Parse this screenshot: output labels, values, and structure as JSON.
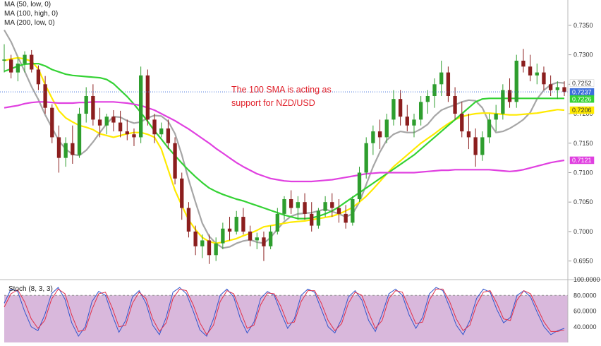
{
  "chart_data": [
    {
      "type": "candlestick",
      "series": [
        {
          "name": "MA (50, low, 0)",
          "color": "#a6a6a6",
          "values": [
            0.7342,
            0.7322,
            0.7296,
            0.7272,
            0.7246,
            0.7224,
            0.7198,
            0.7176,
            0.7154,
            0.714,
            0.7131,
            0.7129,
            0.7138,
            0.7152,
            0.7168,
            0.7183,
            0.7195,
            0.7194,
            0.7188,
            0.7184,
            0.7186,
            0.7193,
            0.7197,
            0.7196,
            0.7187,
            0.7166,
            0.713,
            0.7088,
            0.705,
            0.7014,
            0.6992,
            0.698,
            0.6972,
            0.6974,
            0.698,
            0.6984,
            0.6986,
            0.6982,
            0.698,
            0.699,
            0.7004,
            0.7017,
            0.7026,
            0.703,
            0.7031,
            0.7032,
            0.7035,
            0.7038,
            0.7034,
            0.703,
            0.7025,
            0.703,
            0.705,
            0.708,
            0.711,
            0.7135,
            0.7155,
            0.7165,
            0.717,
            0.7168,
            0.7168,
            0.7174,
            0.7182,
            0.7196,
            0.7206,
            0.7211,
            0.7215,
            0.722,
            0.7223,
            0.7222,
            0.721,
            0.7185,
            0.7168,
            0.717,
            0.7175,
            0.7182,
            0.719,
            0.7202,
            0.7225,
            0.724,
            0.7249,
            0.7253,
            0.7252
          ]
        },
        {
          "name": "MA (100, high, 0)",
          "color": "#ffea00",
          "values": [
            0.729,
            0.7293,
            0.7295,
            0.7293,
            0.7289,
            0.7276,
            0.7249,
            0.7226,
            0.7205,
            0.7193,
            0.7186,
            0.718,
            0.7177,
            0.7173,
            0.7166,
            0.7163,
            0.716,
            0.7163,
            0.7166,
            0.7168,
            0.7168,
            0.7165,
            0.716,
            0.714,
            0.7105,
            0.707,
            0.7044,
            0.702,
            0.7003,
            0.699,
            0.6983,
            0.698,
            0.6982,
            0.6985,
            0.6988,
            0.6993,
            0.6997,
            0.7002,
            0.7008,
            0.701,
            0.7012,
            0.7014,
            0.7016,
            0.7017,
            0.7018,
            0.702,
            0.7022,
            0.7024,
            0.7026,
            0.703,
            0.7035,
            0.7041,
            0.705,
            0.706,
            0.7072,
            0.7085,
            0.7098,
            0.711,
            0.712,
            0.713,
            0.714,
            0.715,
            0.7158,
            0.7166,
            0.7175,
            0.7183,
            0.719,
            0.7195,
            0.7198,
            0.72,
            0.7201,
            0.7201,
            0.72,
            0.7199,
            0.7198,
            0.7198,
            0.7199,
            0.72,
            0.7201,
            0.7203,
            0.7205,
            0.7207,
            0.7206
          ]
        },
        {
          "name": "MA (200, low, 0)",
          "color": "#34d234",
          "values": [
            0.7272,
            0.7276,
            0.7281,
            0.7284,
            0.7285,
            0.7285,
            0.7281,
            0.7275,
            0.7271,
            0.7267,
            0.7265,
            0.7264,
            0.7263,
            0.7262,
            0.7261,
            0.7258,
            0.7251,
            0.724,
            0.7229,
            0.7216,
            0.7202,
            0.7187,
            0.7171,
            0.7157,
            0.7142,
            0.7129,
            0.7116,
            0.7104,
            0.7093,
            0.7083,
            0.7074,
            0.7068,
            0.7063,
            0.7059,
            0.7055,
            0.7052,
            0.7048,
            0.7044,
            0.704,
            0.7036,
            0.7032,
            0.7028,
            0.7025,
            0.7022,
            0.7022,
            0.7023,
            0.7026,
            0.703,
            0.7035,
            0.7042,
            0.705,
            0.7058,
            0.7066,
            0.7074,
            0.7082,
            0.709,
            0.7098,
            0.7106,
            0.7114,
            0.7122,
            0.713,
            0.714,
            0.715,
            0.716,
            0.717,
            0.718,
            0.719,
            0.72,
            0.721,
            0.722,
            0.7225,
            0.7226,
            0.7226,
            0.7226,
            0.7226,
            0.7226,
            0.7226,
            0.7226,
            0.7226,
            0.7226,
            0.7226,
            0.7226,
            0.7226
          ]
        },
        {
          "name": "",
          "color": "#e040e0",
          "values": [
            0.721,
            0.7212,
            0.7214,
            0.7217,
            0.7219,
            0.722,
            0.722,
            0.7219,
            0.7218,
            0.7218,
            0.7218,
            0.7219,
            0.7219,
            0.722,
            0.722,
            0.722,
            0.722,
            0.7219,
            0.7218,
            0.7216,
            0.7214,
            0.721,
            0.7206,
            0.72,
            0.7194,
            0.7188,
            0.7181,
            0.7174,
            0.7166,
            0.7158,
            0.715,
            0.7141,
            0.7133,
            0.7125,
            0.7117,
            0.711,
            0.7104,
            0.7098,
            0.7094,
            0.709,
            0.7088,
            0.7086,
            0.7085,
            0.7085,
            0.7085,
            0.7085,
            0.7086,
            0.7087,
            0.7088,
            0.709,
            0.7092,
            0.7094,
            0.7096,
            0.7098,
            0.7099,
            0.71,
            0.71,
            0.71,
            0.71,
            0.71,
            0.71,
            0.7101,
            0.7102,
            0.7103,
            0.7104,
            0.7104,
            0.7105,
            0.7105,
            0.7105,
            0.7105,
            0.7105,
            0.7105,
            0.7104,
            0.7103,
            0.7102,
            0.7103,
            0.7105,
            0.7108,
            0.7111,
            0.7114,
            0.7117,
            0.7119,
            0.7121
          ]
        }
      ],
      "ohlc": [
        [
          0.729,
          0.7318,
          0.727,
          0.7292
        ],
        [
          0.7292,
          0.73,
          0.726,
          0.727
        ],
        [
          0.727,
          0.7296,
          0.7255,
          0.7285
        ],
        [
          0.7285,
          0.7306,
          0.727,
          0.73
        ],
        [
          0.73,
          0.7308,
          0.727,
          0.7275
        ],
        [
          0.7275,
          0.7282,
          0.724,
          0.725
        ],
        [
          0.725,
          0.7264,
          0.72,
          0.721
        ],
        [
          0.721,
          0.7216,
          0.715,
          0.716
        ],
        [
          0.716,
          0.718,
          0.71,
          0.7125
        ],
        [
          0.7125,
          0.716,
          0.711,
          0.715
        ],
        [
          0.715,
          0.718,
          0.7115,
          0.713
        ],
        [
          0.713,
          0.721,
          0.7125,
          0.72
        ],
        [
          0.72,
          0.7245,
          0.7185,
          0.723
        ],
        [
          0.723,
          0.725,
          0.718,
          0.719
        ],
        [
          0.719,
          0.721,
          0.716,
          0.718
        ],
        [
          0.718,
          0.72,
          0.7165,
          0.7195
        ],
        [
          0.7195,
          0.7206,
          0.717,
          0.7185
        ],
        [
          0.7185,
          0.7205,
          0.716,
          0.717
        ],
        [
          0.717,
          0.719,
          0.7155,
          0.7165
        ],
        [
          0.7165,
          0.7175,
          0.7145,
          0.716
        ],
        [
          0.716,
          0.728,
          0.715,
          0.7265
        ],
        [
          0.7265,
          0.7275,
          0.718,
          0.719
        ],
        [
          0.719,
          0.72,
          0.715,
          0.7165
        ],
        [
          0.7165,
          0.7185,
          0.716,
          0.7175
        ],
        [
          0.7175,
          0.719,
          0.714,
          0.715
        ],
        [
          0.715,
          0.716,
          0.708,
          0.709
        ],
        [
          0.709,
          0.71,
          0.702,
          0.704
        ],
        [
          0.704,
          0.705,
          0.699,
          0.7
        ],
        [
          0.7,
          0.701,
          0.696,
          0.6975
        ],
        [
          0.6975,
          0.6995,
          0.6955,
          0.6985
        ],
        [
          0.6985,
          0.6995,
          0.6945,
          0.696
        ],
        [
          0.696,
          0.699,
          0.695,
          0.698
        ],
        [
          0.698,
          0.7015,
          0.697,
          0.7005
        ],
        [
          0.7005,
          0.7025,
          0.6985,
          0.7
        ],
        [
          0.7,
          0.7035,
          0.6995,
          0.7025
        ],
        [
          0.7025,
          0.704,
          0.6995,
          0.7
        ],
        [
          0.7,
          0.701,
          0.6975,
          0.6985
        ],
        [
          0.6985,
          0.6998,
          0.697,
          0.699
        ],
        [
          0.699,
          0.7,
          0.695,
          0.6975
        ],
        [
          0.6975,
          0.701,
          0.697,
          0.7
        ],
        [
          0.7,
          0.704,
          0.6995,
          0.703
        ],
        [
          0.703,
          0.706,
          0.702,
          0.7055
        ],
        [
          0.7055,
          0.707,
          0.703,
          0.704
        ],
        [
          0.704,
          0.706,
          0.702,
          0.705
        ],
        [
          0.705,
          0.7065,
          0.702,
          0.703
        ],
        [
          0.703,
          0.705,
          0.7,
          0.701
        ],
        [
          0.701,
          0.704,
          0.7005,
          0.7035
        ],
        [
          0.7035,
          0.706,
          0.7025,
          0.705
        ],
        [
          0.705,
          0.7065,
          0.7025,
          0.704
        ],
        [
          0.704,
          0.7055,
          0.7015,
          0.703
        ],
        [
          0.703,
          0.7045,
          0.7005,
          0.7015
        ],
        [
          0.7015,
          0.706,
          0.701,
          0.7055
        ],
        [
          0.7055,
          0.711,
          0.705,
          0.71
        ],
        [
          0.71,
          0.716,
          0.709,
          0.715
        ],
        [
          0.715,
          0.718,
          0.713,
          0.717
        ],
        [
          0.717,
          0.719,
          0.714,
          0.716
        ],
        [
          0.716,
          0.72,
          0.715,
          0.719
        ],
        [
          0.719,
          0.724,
          0.718,
          0.7225
        ],
        [
          0.7225,
          0.724,
          0.718,
          0.7195
        ],
        [
          0.7195,
          0.7215,
          0.717,
          0.718
        ],
        [
          0.718,
          0.72,
          0.716,
          0.719
        ],
        [
          0.719,
          0.723,
          0.718,
          0.722
        ],
        [
          0.722,
          0.724,
          0.72,
          0.723
        ],
        [
          0.723,
          0.726,
          0.721,
          0.725
        ],
        [
          0.725,
          0.729,
          0.723,
          0.727
        ],
        [
          0.727,
          0.728,
          0.722,
          0.723
        ],
        [
          0.723,
          0.7245,
          0.719,
          0.72
        ],
        [
          0.72,
          0.722,
          0.716,
          0.717
        ],
        [
          0.717,
          0.72,
          0.714,
          0.716
        ],
        [
          0.716,
          0.7175,
          0.711,
          0.713
        ],
        [
          0.713,
          0.717,
          0.712,
          0.716
        ],
        [
          0.716,
          0.72,
          0.715,
          0.719
        ],
        [
          0.719,
          0.7215,
          0.717,
          0.72
        ],
        [
          0.72,
          0.725,
          0.719,
          0.724
        ],
        [
          0.724,
          0.726,
          0.721,
          0.722
        ],
        [
          0.722,
          0.73,
          0.721,
          0.729
        ],
        [
          0.729,
          0.731,
          0.727,
          0.728
        ],
        [
          0.728,
          0.73,
          0.7255,
          0.7265
        ],
        [
          0.7265,
          0.7285,
          0.725,
          0.727
        ],
        [
          0.727,
          0.728,
          0.724,
          0.725
        ],
        [
          0.725,
          0.7265,
          0.723,
          0.724
        ],
        [
          0.724,
          0.7255,
          0.7225,
          0.7245
        ],
        [
          0.7245,
          0.7255,
          0.723,
          0.7237
        ]
      ],
      "ylim": [
        0.6922,
        0.7387
      ],
      "y_ticks": [
        "0.7350",
        "0.7300",
        "0.7250",
        "0.7200",
        "0.7150",
        "0.7100",
        "0.7050",
        "0.7000",
        "0.6950"
      ],
      "price_labels": [
        {
          "text": "0.7252",
          "value": 0.7252,
          "bg": "#ffffff",
          "fg": "#333333"
        },
        {
          "text": "0.7237",
          "value": 0.7237,
          "bg": "#3d6fdc",
          "fg": "#ffffff"
        },
        {
          "text": "0.7226",
          "value": 0.7226,
          "bg": "#34d234",
          "fg": "#ffffff"
        },
        {
          "text": "0.7206",
          "value": 0.7206,
          "bg": "#ffea00",
          "fg": "#333333"
        },
        {
          "text": "0.7121",
          "value": 0.7121,
          "bg": "#e040e0",
          "fg": "#ffffff"
        }
      ],
      "current_price": 0.7237,
      "annotation": [
        "The 100 SMA is acting as",
        "support for NZD/USD"
      ],
      "colors": {
        "up": "#2e9e2e",
        "down": "#8b1e1e",
        "price_line": "#3d6fdc",
        "annotation": "#e0202a"
      }
    },
    {
      "type": "line",
      "title": "Stoch (8, 3, 3)",
      "ylim": [
        20,
        100
      ],
      "y_ticks": [
        "100.0000",
        "80.0000",
        "60.0000",
        "40.0000"
      ],
      "overbought_band": [
        20,
        80
      ],
      "series": [
        {
          "name": "",
          "color": "#3355cc",
          "values": [
            70,
            88,
            85,
            60,
            40,
            35,
            55,
            82,
            90,
            75,
            45,
            28,
            40,
            72,
            85,
            80,
            55,
            33,
            48,
            78,
            86,
            70,
            42,
            30,
            52,
            84,
            90,
            82,
            60,
            36,
            28,
            50,
            80,
            88,
            78,
            50,
            32,
            46,
            76,
            85,
            80,
            58,
            38,
            50,
            80,
            88,
            84,
            62,
            40,
            32,
            50,
            78,
            86,
            74,
            48,
            34,
            56,
            82,
            88,
            80,
            55,
            38,
            52,
            82,
            90,
            86,
            65,
            42,
            30,
            48,
            76,
            88,
            84,
            62,
            45,
            52,
            80,
            86,
            78,
            58,
            40,
            30,
            35,
            38
          ]
        },
        {
          "name": "",
          "color": "#e0304a",
          "values": [
            65,
            82,
            87,
            72,
            50,
            38,
            48,
            75,
            88,
            82,
            55,
            34,
            36,
            62,
            82,
            84,
            64,
            40,
            42,
            70,
            84,
            76,
            50,
            34,
            45,
            76,
            88,
            86,
            68,
            45,
            30,
            42,
            72,
            86,
            82,
            60,
            38,
            42,
            68,
            83,
            82,
            66,
            44,
            46,
            72,
            86,
            86,
            70,
            48,
            35,
            44,
            70,
            84,
            80,
            58,
            38,
            48,
            76,
            86,
            84,
            64,
            44,
            46,
            74,
            88,
            88,
            72,
            50,
            35,
            42,
            68,
            84,
            86,
            70,
            50,
            48,
            74,
            86,
            82,
            64,
            46,
            34,
            34,
            36
          ]
        }
      ]
    }
  ]
}
